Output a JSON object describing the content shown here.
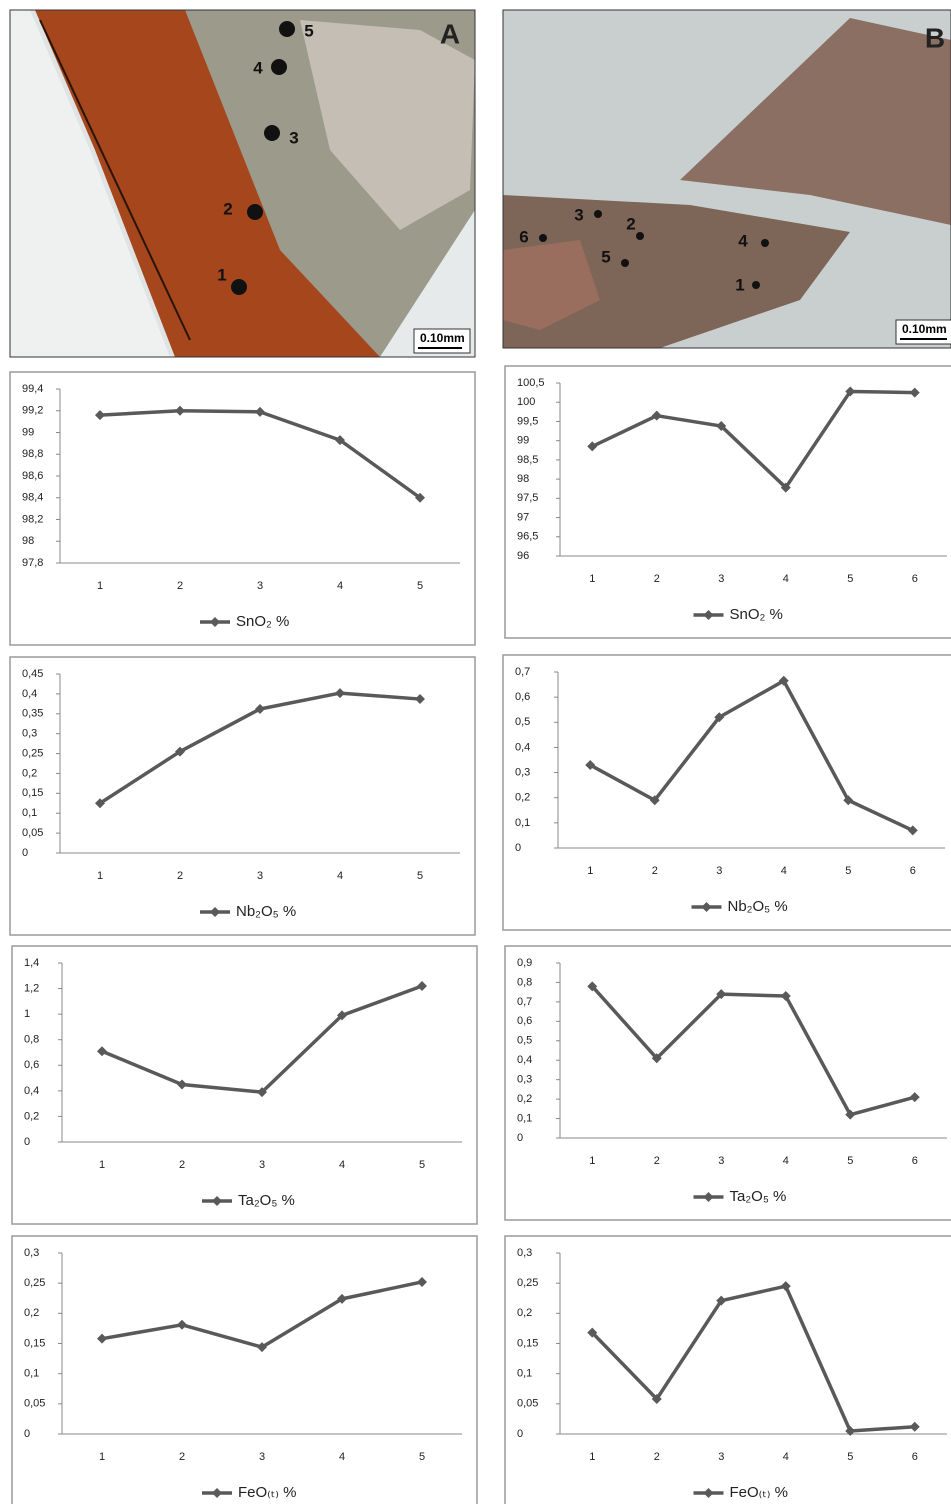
{
  "micrographs": [
    {
      "label": "A",
      "scale": "0.10mm",
      "points": [
        "1",
        "2",
        "3",
        "4",
        "5"
      ]
    },
    {
      "label": "B",
      "scale": "0.10mm",
      "points": [
        "1",
        "2",
        "3",
        "4",
        "5",
        "6"
      ]
    }
  ],
  "chart_data": [
    {
      "type": "line",
      "categories": [
        "1",
        "2",
        "3",
        "4",
        "5"
      ],
      "series": [
        {
          "name": "SnO₂ %",
          "color": "#595959",
          "values": [
            99.16,
            99.2,
            99.19,
            98.93,
            98.4
          ]
        }
      ],
      "ylim": [
        97.8,
        99.4
      ],
      "yticks": [
        {
          "value": 97.8,
          "label": "97,8"
        },
        98,
        {
          "value": 98.2,
          "label": "98,2"
        },
        {
          "value": 98.4,
          "label": "98,4"
        },
        {
          "value": 98.6,
          "label": "98,6"
        },
        {
          "value": 98.8,
          "label": "98,8"
        },
        99,
        {
          "value": 99.2,
          "label": "99,2"
        },
        {
          "value": 99.4,
          "label": "99,4"
        }
      ]
    },
    {
      "type": "line",
      "categories": [
        "1",
        "2",
        "3",
        "4",
        "5",
        "6"
      ],
      "series": [
        {
          "name": "SnO₂ %",
          "color": "#595959",
          "values": [
            98.85,
            99.65,
            99.38,
            97.78,
            100.28,
            100.25
          ]
        }
      ],
      "ylim": [
        96,
        100.5
      ],
      "yticks": [
        96,
        {
          "value": 96.5,
          "label": "96,5"
        },
        97,
        {
          "value": 97.5,
          "label": "97,5"
        },
        98,
        {
          "value": 98.5,
          "label": "98,5"
        },
        99,
        {
          "value": 99.5,
          "label": "99,5"
        },
        100,
        {
          "value": 100.5,
          "label": "100,5"
        }
      ]
    },
    {
      "type": "line",
      "categories": [
        "1",
        "2",
        "3",
        "4",
        "5"
      ],
      "series": [
        {
          "name": "Nb₂O₅ %",
          "color": "#595959",
          "values": [
            0.125,
            0.255,
            0.362,
            0.402,
            0.387
          ]
        }
      ],
      "ylim": [
        0,
        0.45
      ],
      "yticks": [
        0,
        {
          "value": 0.05,
          "label": "0,05"
        },
        {
          "value": 0.1,
          "label": "0,1"
        },
        {
          "value": 0.15,
          "label": "0,15"
        },
        {
          "value": 0.2,
          "label": "0,2"
        },
        {
          "value": 0.25,
          "label": "0,25"
        },
        {
          "value": 0.3,
          "label": "0,3"
        },
        {
          "value": 0.35,
          "label": "0,35"
        },
        {
          "value": 0.4,
          "label": "0,4"
        },
        {
          "value": 0.45,
          "label": "0,45"
        }
      ]
    },
    {
      "type": "line",
      "categories": [
        "1",
        "2",
        "3",
        "4",
        "5",
        "6"
      ],
      "series": [
        {
          "name": "Nb₂O₅ %",
          "color": "#595959",
          "values": [
            0.33,
            0.19,
            0.52,
            0.665,
            0.19,
            0.07
          ]
        }
      ],
      "ylim": [
        0,
        0.7
      ],
      "yticks": [
        0,
        {
          "value": 0.1,
          "label": "0,1"
        },
        {
          "value": 0.2,
          "label": "0,2"
        },
        {
          "value": 0.3,
          "label": "0,3"
        },
        {
          "value": 0.4,
          "label": "0,4"
        },
        {
          "value": 0.5,
          "label": "0,5"
        },
        {
          "value": 0.6,
          "label": "0,6"
        },
        {
          "value": 0.7,
          "label": "0,7"
        }
      ]
    },
    {
      "type": "line",
      "categories": [
        "1",
        "2",
        "3",
        "4",
        "5"
      ],
      "series": [
        {
          "name": "Ta₂O₅ %",
          "color": "#595959",
          "values": [
            0.71,
            0.45,
            0.39,
            0.99,
            1.22
          ]
        }
      ],
      "ylim": [
        0,
        1.4
      ],
      "yticks": [
        0,
        {
          "value": 0.2,
          "label": "0,2"
        },
        {
          "value": 0.4,
          "label": "0,4"
        },
        {
          "value": 0.6,
          "label": "0,6"
        },
        {
          "value": 0.8,
          "label": "0,8"
        },
        1,
        {
          "value": 1.2,
          "label": "1,2"
        },
        {
          "value": 1.4,
          "label": "1,4"
        }
      ]
    },
    {
      "type": "line",
      "categories": [
        "1",
        "2",
        "3",
        "4",
        "5",
        "6"
      ],
      "series": [
        {
          "name": "Ta₂O₅ %",
          "color": "#595959",
          "values": [
            0.78,
            0.41,
            0.74,
            0.73,
            0.12,
            0.21
          ]
        }
      ],
      "ylim": [
        0,
        0.9
      ],
      "yticks": [
        0,
        {
          "value": 0.1,
          "label": "0,1"
        },
        {
          "value": 0.2,
          "label": "0,2"
        },
        {
          "value": 0.3,
          "label": "0,3"
        },
        {
          "value": 0.4,
          "label": "0,4"
        },
        {
          "value": 0.5,
          "label": "0,5"
        },
        {
          "value": 0.6,
          "label": "0,6"
        },
        {
          "value": 0.7,
          "label": "0,7"
        },
        {
          "value": 0.8,
          "label": "0,8"
        },
        {
          "value": 0.9,
          "label": "0,9"
        }
      ]
    },
    {
      "type": "line",
      "categories": [
        "1",
        "2",
        "3",
        "4",
        "5"
      ],
      "series": [
        {
          "name": "FeO₍ₜ₎ %",
          "color": "#595959",
          "values": [
            0.158,
            0.181,
            0.144,
            0.224,
            0.252
          ]
        }
      ],
      "ylim": [
        0,
        0.3
      ],
      "yticks": [
        0,
        {
          "value": 0.05,
          "label": "0,05"
        },
        {
          "value": 0.1,
          "label": "0,1"
        },
        {
          "value": 0.15,
          "label": "0,15"
        },
        {
          "value": 0.2,
          "label": "0,2"
        },
        {
          "value": 0.25,
          "label": "0,25"
        },
        {
          "value": 0.3,
          "label": "0,3"
        }
      ]
    },
    {
      "type": "line",
      "categories": [
        "1",
        "2",
        "3",
        "4",
        "5",
        "6"
      ],
      "series": [
        {
          "name": "FeO₍ₜ₎ %",
          "color": "#595959",
          "values": [
            0.168,
            0.058,
            0.221,
            0.245,
            0.005,
            0.012
          ]
        }
      ],
      "ylim": [
        0,
        0.3
      ],
      "yticks": [
        0,
        {
          "value": 0.05,
          "label": "0,05"
        },
        {
          "value": 0.1,
          "label": "0,1"
        },
        {
          "value": 0.15,
          "label": "0,15"
        },
        {
          "value": 0.2,
          "label": "0,2"
        },
        {
          "value": 0.25,
          "label": "0,25"
        },
        {
          "value": 0.3,
          "label": "0,3"
        }
      ]
    }
  ]
}
